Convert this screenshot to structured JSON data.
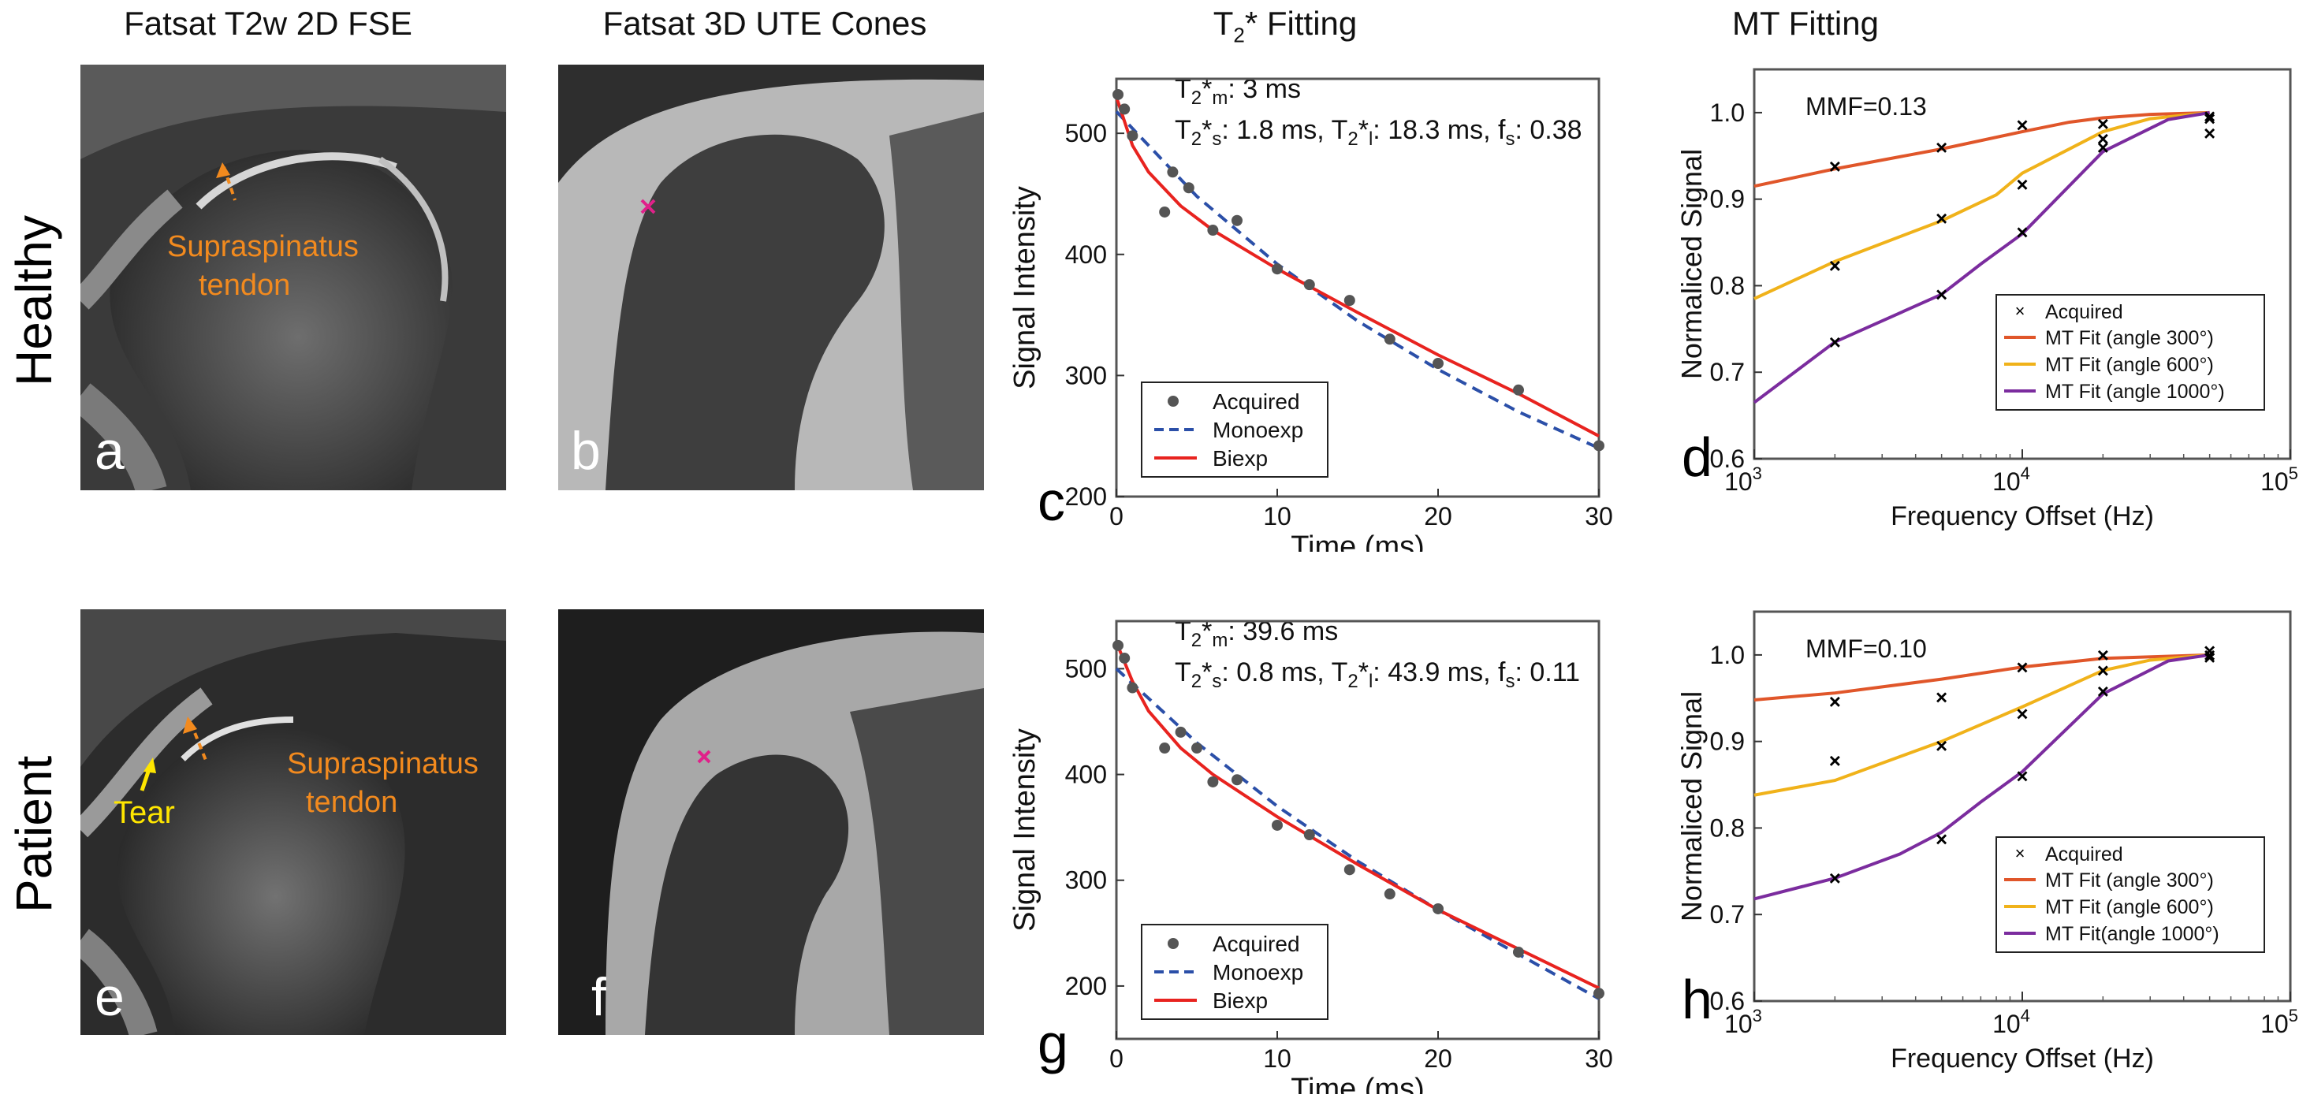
{
  "columns": [
    "Fatsat T2w 2D FSE",
    "Fatsat 3D UTE Cones",
    "T2* Fitting",
    "MT Fitting"
  ],
  "rows": [
    "Healthy",
    "Patient"
  ],
  "panels": {
    "a": {
      "letter": "a",
      "annotation": [
        "Supraspinatus",
        "tendon"
      ]
    },
    "b": {
      "letter": "b"
    },
    "e": {
      "letter": "e",
      "annotation": [
        "Supraspinatus",
        "tendon"
      ],
      "tear": "Tear"
    },
    "f": {
      "letter": "f"
    }
  },
  "colors": {
    "acquired": "#555555",
    "monoexp": "#2b4fa8",
    "biexp": "#e8231f",
    "mt300": "#e0562a",
    "mt600": "#f0b21a",
    "mt1000": "#7b2c9e",
    "marker": "#e0218a"
  },
  "chart_data": [
    {
      "id": "c",
      "letter": "c",
      "type": "line",
      "title": "T2* Fitting",
      "xlabel": "Time (ms)",
      "ylabel": "Signal Intensity",
      "xlim": [
        0,
        30
      ],
      "ylim": [
        200,
        545
      ],
      "xticks": [
        0,
        10,
        20,
        30
      ],
      "yticks": [
        200,
        300,
        400,
        500
      ],
      "annotations": [
        "T2*m: 3 ms",
        "T2*s: 1.8 ms, T2*l: 18.3 ms, fs: 0.38"
      ],
      "legend": [
        "Acquired",
        "Monoexp",
        "Biexp"
      ],
      "series": [
        {
          "name": "Acquired",
          "x": [
            0.1,
            0.5,
            1,
            3,
            3.5,
            4.5,
            6,
            7.5,
            10,
            12,
            14.5,
            17,
            20,
            25,
            30
          ],
          "y": [
            532,
            520,
            498,
            435,
            468,
            455,
            420,
            428,
            388,
            375,
            362,
            330,
            310,
            288,
            242
          ]
        },
        {
          "name": "Monoexp",
          "x": [
            0,
            5,
            10,
            15,
            20,
            25,
            30
          ],
          "y": [
            518,
            448,
            392,
            345,
            305,
            270,
            240
          ]
        },
        {
          "name": "Biexp",
          "x": [
            0,
            1,
            2,
            4,
            6,
            10,
            15,
            20,
            25,
            30
          ],
          "y": [
            530,
            490,
            468,
            440,
            420,
            388,
            352,
            317,
            285,
            250
          ]
        }
      ]
    },
    {
      "id": "d",
      "letter": "d",
      "type": "line",
      "title": "MT Fitting",
      "xlabel": "Frequency Offset (Hz)",
      "ylabel": "Normaliced Signal",
      "xscale": "log",
      "xlim": [
        1000,
        100000
      ],
      "ylim": [
        0.6,
        1.05
      ],
      "xticks": [
        "10^3",
        "10^4",
        "10^5"
      ],
      "yticks": [
        0.6,
        0.7,
        0.8,
        0.9,
        1.0
      ],
      "annotation": "MMF=0.13",
      "legend": [
        "Acquired",
        "MT Fit (angle 300°)",
        "MT Fit (angle 600°)",
        "MT Fit (angle 1000°)"
      ],
      "series": [
        {
          "name": "Acquired",
          "x": [
            2000,
            2000,
            2000,
            5000,
            5000,
            5000,
            10000,
            10000,
            10000,
            20000,
            20000,
            20000,
            50000,
            50000,
            50000
          ],
          "y": [
            0.938,
            0.823,
            0.735,
            0.96,
            0.878,
            0.79,
            0.986,
            0.917,
            0.862,
            0.987,
            0.97,
            0.96,
            0.996,
            0.993,
            0.976
          ]
        },
        {
          "name": "MT Fit (angle 300°)",
          "x": [
            1000,
            2000,
            5000,
            10000,
            15000,
            20000,
            30000,
            50000
          ],
          "y": [
            0.915,
            0.935,
            0.958,
            0.978,
            0.989,
            0.994,
            0.998,
            1.0
          ]
        },
        {
          "name": "MT Fit (angle 600°)",
          "x": [
            1000,
            2000,
            5000,
            8000,
            10000,
            20000,
            30000,
            50000
          ],
          "y": [
            0.785,
            0.828,
            0.875,
            0.905,
            0.93,
            0.978,
            0.993,
            1.0
          ]
        },
        {
          "name": "MT Fit (angle 1000°)",
          "x": [
            1000,
            2000,
            5000,
            7000,
            10000,
            20000,
            35000,
            50000
          ],
          "y": [
            0.665,
            0.735,
            0.79,
            0.825,
            0.86,
            0.955,
            0.992,
            1.0
          ]
        }
      ]
    },
    {
      "id": "g",
      "letter": "g",
      "type": "line",
      "title": "",
      "xlabel": "Time (ms)",
      "ylabel": "Signal Intensity",
      "xlim": [
        0,
        30
      ],
      "ylim": [
        150,
        545
      ],
      "xticks": [
        0,
        10,
        20,
        30
      ],
      "yticks": [
        200,
        300,
        400,
        500
      ],
      "annotations": [
        "T2*m: 39.6 ms",
        "T2*s: 0.8 ms, T2*l: 43.9 ms, fs: 0.11"
      ],
      "legend": [
        "Acquired",
        "Monoexp",
        "Biexp"
      ],
      "series": [
        {
          "name": "Acquired",
          "x": [
            0.1,
            0.5,
            1,
            3,
            4,
            5,
            6,
            7.5,
            10,
            12,
            14.5,
            17,
            20,
            25,
            30
          ],
          "y": [
            522,
            510,
            482,
            425,
            440,
            425,
            393,
            395,
            352,
            343,
            310,
            287,
            273,
            232,
            193
          ]
        },
        {
          "name": "Monoexp",
          "x": [
            0,
            5,
            10,
            15,
            20,
            25,
            30
          ],
          "y": [
            500,
            430,
            370,
            318,
            272,
            230,
            188
          ]
        },
        {
          "name": "Biexp",
          "x": [
            0,
            1,
            2,
            4,
            6,
            10,
            15,
            20,
            25,
            30
          ],
          "y": [
            525,
            488,
            460,
            425,
            400,
            360,
            315,
            272,
            235,
            198
          ]
        }
      ]
    },
    {
      "id": "h",
      "letter": "h",
      "type": "line",
      "title": "",
      "xlabel": "Frequency Offset (Hz)",
      "ylabel": "Normaliced Signal",
      "xscale": "log",
      "xlim": [
        1000,
        100000
      ],
      "ylim": [
        0.6,
        1.05
      ],
      "xticks": [
        "10^3",
        "10^4",
        "10^5"
      ],
      "yticks": [
        0.6,
        0.7,
        0.8,
        0.9,
        1.0
      ],
      "annotation": "MMF=0.10",
      "legend": [
        "Acquired",
        "MT Fit (angle 300°)",
        "MT Fit (angle 600°)",
        "MT Fit(angle 1000°)"
      ],
      "series": [
        {
          "name": "Acquired",
          "x": [
            2000,
            2000,
            2000,
            5000,
            5000,
            5000,
            10000,
            10000,
            10000,
            20000,
            20000,
            20000,
            50000,
            50000,
            50000
          ],
          "y": [
            0.946,
            0.878,
            0.742,
            0.951,
            0.895,
            0.787,
            0.986,
            0.932,
            0.86,
            1.0,
            0.982,
            0.958,
            1.005,
            1.0,
            0.997
          ]
        },
        {
          "name": "MT Fit (angle 300°)",
          "x": [
            1000,
            2000,
            5000,
            10000,
            20000,
            50000
          ],
          "y": [
            0.948,
            0.956,
            0.972,
            0.986,
            0.996,
            1.0
          ]
        },
        {
          "name": "MT Fit (angle 600°)",
          "x": [
            1000,
            2000,
            5000,
            10000,
            20000,
            30000,
            50000
          ],
          "y": [
            0.838,
            0.855,
            0.9,
            0.94,
            0.982,
            0.994,
            1.0
          ]
        },
        {
          "name": "MT Fit(angle 1000°)",
          "x": [
            1000,
            2000,
            3500,
            5000,
            7000,
            10000,
            20000,
            35000,
            50000
          ],
          "y": [
            0.718,
            0.742,
            0.77,
            0.795,
            0.83,
            0.865,
            0.955,
            0.993,
            1.0
          ]
        }
      ]
    }
  ]
}
